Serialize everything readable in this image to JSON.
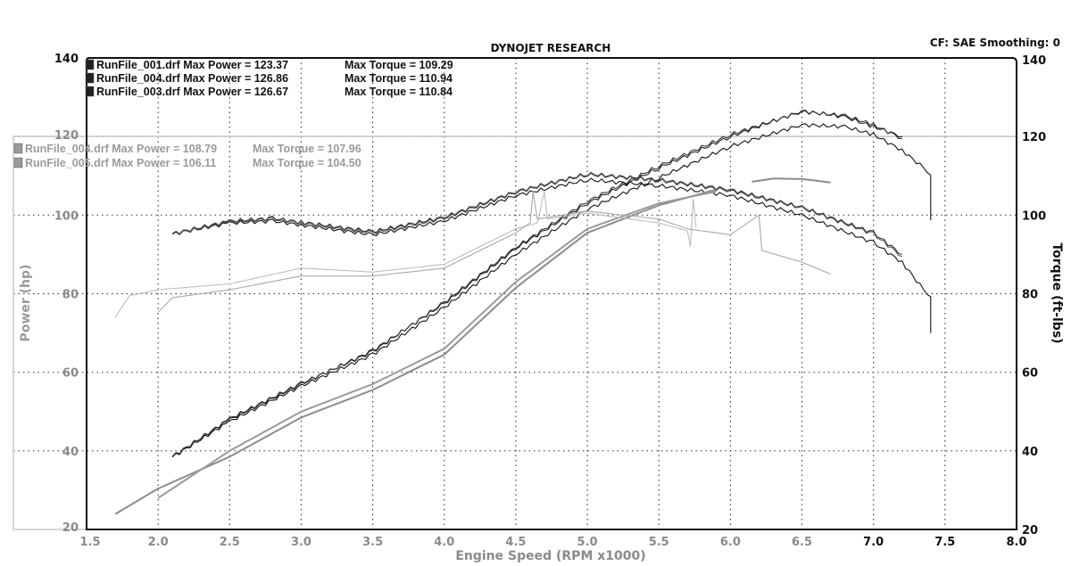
{
  "chart_data": {
    "type": "line",
    "title": "DYNOJET RESEARCH",
    "subtitle": "CF: SAE  Smoothing: 0",
    "xlabel": "Engine Speed (RPM x1000)",
    "ylabel": "Power (hp)",
    "y2label": "Torque (ft-lbs)",
    "xlim": [
      1.5,
      8.0
    ],
    "ylim": [
      20,
      140
    ],
    "y2lim": [
      20,
      140
    ],
    "xticks": [
      "1.5",
      "2.0",
      "2.5",
      "3.0",
      "3.5",
      "4.0",
      "4.5",
      "5.0",
      "5.5",
      "6.0",
      "6.5",
      "7.0",
      "7.5",
      "8.0"
    ],
    "yticks": [
      "20",
      "40",
      "60",
      "80",
      "100",
      "120",
      "140"
    ],
    "grid": true,
    "legend_placement": "top-left",
    "legend": [
      {
        "text": "RunFile_001.drf Max Power = 123.37",
        "torque": "Max Torque = 109.29",
        "color": "#111111"
      },
      {
        "text": "RunFile_004.drf Max Power = 126.86",
        "torque": "Max Torque = 110.94",
        "color": "#111111"
      },
      {
        "text": "RunFile_003.drf Max Power = 126.67",
        "torque": "Max Torque = 110.84",
        "color": "#111111"
      },
      {
        "text": "RunFile_004.drf Max Power = 108.79",
        "torque": "Max Torque = 107.96",
        "color": "#9a9a9a"
      },
      {
        "text": "RunFile_005.drf Max Power = 106.11",
        "torque": "Max Torque = 104.50",
        "color": "#9a9a9a"
      }
    ],
    "series": [
      {
        "name": "RunFile_001.drf",
        "kind": "power",
        "color": "#111111",
        "points": [
          [
            2.1,
            38.4
          ],
          [
            2.5,
            47.5
          ],
          [
            3.0,
            56.5
          ],
          [
            3.5,
            64.5
          ],
          [
            4.0,
            76.5
          ],
          [
            4.5,
            90
          ],
          [
            5.0,
            101.5
          ],
          [
            5.5,
            109.5
          ],
          [
            6.0,
            117.5
          ],
          [
            6.5,
            123
          ],
          [
            6.8,
            122.5
          ],
          [
            7.0,
            120.5
          ],
          [
            7.2,
            116.5
          ],
          [
            7.35,
            112
          ],
          [
            7.4,
            110.5
          ],
          [
            7.4,
            98.7
          ]
        ]
      },
      {
        "name": "RunFile_004.drf",
        "kind": "power",
        "color": "#222222",
        "points": [
          [
            2.1,
            38.6
          ],
          [
            2.5,
            48
          ],
          [
            3.0,
            57
          ],
          [
            3.5,
            65.5
          ],
          [
            4.0,
            77.5
          ],
          [
            4.5,
            91.5
          ],
          [
            5.0,
            103
          ],
          [
            5.5,
            112
          ],
          [
            6.0,
            120
          ],
          [
            6.5,
            126.5
          ],
          [
            6.8,
            125
          ],
          [
            7.0,
            122.5
          ],
          [
            7.2,
            120
          ]
        ]
      },
      {
        "name": "RunFile_003.drf",
        "kind": "power",
        "color": "#333333",
        "points": [
          [
            2.1,
            38.5
          ],
          [
            2.5,
            48.2
          ],
          [
            3.0,
            57.2
          ],
          [
            3.5,
            65.2
          ],
          [
            4.0,
            77.8
          ],
          [
            4.5,
            91.8
          ],
          [
            5.0,
            103.5
          ],
          [
            5.5,
            112.5
          ],
          [
            6.0,
            120.5
          ],
          [
            6.5,
            126.3
          ],
          [
            6.8,
            125.3
          ],
          [
            7.0,
            123
          ],
          [
            7.2,
            119.5
          ]
        ]
      },
      {
        "name": "RunFile_001.drf",
        "kind": "torque",
        "color": "#111111",
        "points": [
          [
            2.1,
            95.2
          ],
          [
            2.5,
            98
          ],
          [
            2.8,
            98.5
          ],
          [
            3.0,
            97.5
          ],
          [
            3.5,
            95
          ],
          [
            4.0,
            98.5
          ],
          [
            4.5,
            105
          ],
          [
            5.0,
            109
          ],
          [
            5.5,
            107.5
          ],
          [
            6.0,
            105
          ],
          [
            6.5,
            100
          ],
          [
            7.0,
            93
          ],
          [
            7.2,
            88
          ],
          [
            7.35,
            81
          ],
          [
            7.4,
            79.5
          ],
          [
            7.4,
            70
          ]
        ]
      },
      {
        "name": "RunFile_004.drf",
        "kind": "torque",
        "color": "#333333",
        "points": [
          [
            2.1,
            95.3
          ],
          [
            2.5,
            98.5
          ],
          [
            2.8,
            99.2
          ],
          [
            3.0,
            98.2
          ],
          [
            3.5,
            95.8
          ],
          [
            4.0,
            99.5
          ],
          [
            4.5,
            106
          ],
          [
            5.0,
            110.5
          ],
          [
            5.5,
            109
          ],
          [
            6.0,
            106.5
          ],
          [
            6.5,
            102
          ],
          [
            7.0,
            95.5
          ],
          [
            7.2,
            90
          ]
        ]
      },
      {
        "name": "RunFile_003.drf",
        "kind": "torque",
        "color": "#555555",
        "points": [
          [
            2.1,
            95.1
          ],
          [
            2.5,
            98.3
          ],
          [
            2.8,
            99
          ],
          [
            3.0,
            98
          ],
          [
            3.5,
            95.5
          ],
          [
            4.0,
            99.2
          ],
          [
            4.5,
            105.8
          ],
          [
            5.0,
            110.3
          ],
          [
            5.5,
            108.8
          ],
          [
            6.0,
            106.2
          ],
          [
            6.5,
            101.8
          ],
          [
            7.0,
            95.2
          ],
          [
            7.2,
            89.5
          ]
        ]
      },
      {
        "name": "RunFile_004.drf (gray)",
        "kind": "power",
        "color": "#8c8c8c",
        "points": [
          [
            1.7,
            23.9
          ],
          [
            2.0,
            30.4
          ],
          [
            2.5,
            38.5
          ],
          [
            3.0,
            48.5
          ],
          [
            3.5,
            55.5
          ],
          [
            4.0,
            64.5
          ],
          [
            4.5,
            81.5
          ],
          [
            5.0,
            95.5
          ],
          [
            5.5,
            102.5
          ],
          [
            5.9,
            106.5
          ]
        ]
      },
      {
        "name": "RunFile_005.drf (gray)",
        "kind": "power",
        "color": "#9a9a9a",
        "points": [
          [
            2.0,
            28
          ],
          [
            2.5,
            40
          ],
          [
            3.0,
            50
          ],
          [
            3.5,
            57
          ],
          [
            4.0,
            66
          ],
          [
            4.5,
            83
          ],
          [
            5.0,
            96.5
          ],
          [
            5.5,
            103
          ],
          [
            5.9,
            106
          ]
        ]
      },
      {
        "name": "RunFile_004.drf (gray) segment",
        "kind": "power",
        "color": "#8c8c8c",
        "points": [
          [
            6.15,
            108.5
          ],
          [
            6.3,
            109.3
          ],
          [
            6.5,
            109.2
          ],
          [
            6.7,
            108.3
          ]
        ]
      },
      {
        "name": "RunFile_004.drf (gray)",
        "kind": "torque",
        "color": "#bdbdbd",
        "points": [
          [
            1.7,
            74
          ],
          [
            1.8,
            79.5
          ],
          [
            2.0,
            81
          ],
          [
            2.5,
            82.5
          ],
          [
            3.0,
            86.5
          ],
          [
            3.5,
            85.5
          ],
          [
            4.0,
            87.5
          ],
          [
            4.5,
            96.5
          ],
          [
            4.65,
            98
          ],
          [
            4.7,
            106
          ],
          [
            4.72,
            99
          ],
          [
            5.0,
            100.5
          ],
          [
            5.5,
            98
          ],
          [
            5.7,
            96
          ],
          [
            5.72,
            92
          ],
          [
            5.74,
            104
          ],
          [
            5.76,
            97
          ]
        ]
      },
      {
        "name": "RunFile_005.drf (gray)",
        "kind": "torque",
        "color": "#a8a8a8",
        "points": [
          [
            2.0,
            75.3
          ],
          [
            2.1,
            79
          ],
          [
            2.5,
            81
          ],
          [
            3.0,
            84.5
          ],
          [
            3.5,
            84.5
          ],
          [
            4.0,
            86.5
          ],
          [
            4.5,
            95.5
          ],
          [
            4.6,
            98
          ],
          [
            4.62,
            106
          ],
          [
            4.65,
            99
          ],
          [
            5.0,
            101
          ],
          [
            5.5,
            99
          ],
          [
            5.7,
            96.5
          ],
          [
            6.0,
            95
          ],
          [
            6.2,
            100
          ],
          [
            6.22,
            91
          ],
          [
            6.5,
            88
          ],
          [
            6.7,
            85
          ]
        ]
      }
    ]
  }
}
